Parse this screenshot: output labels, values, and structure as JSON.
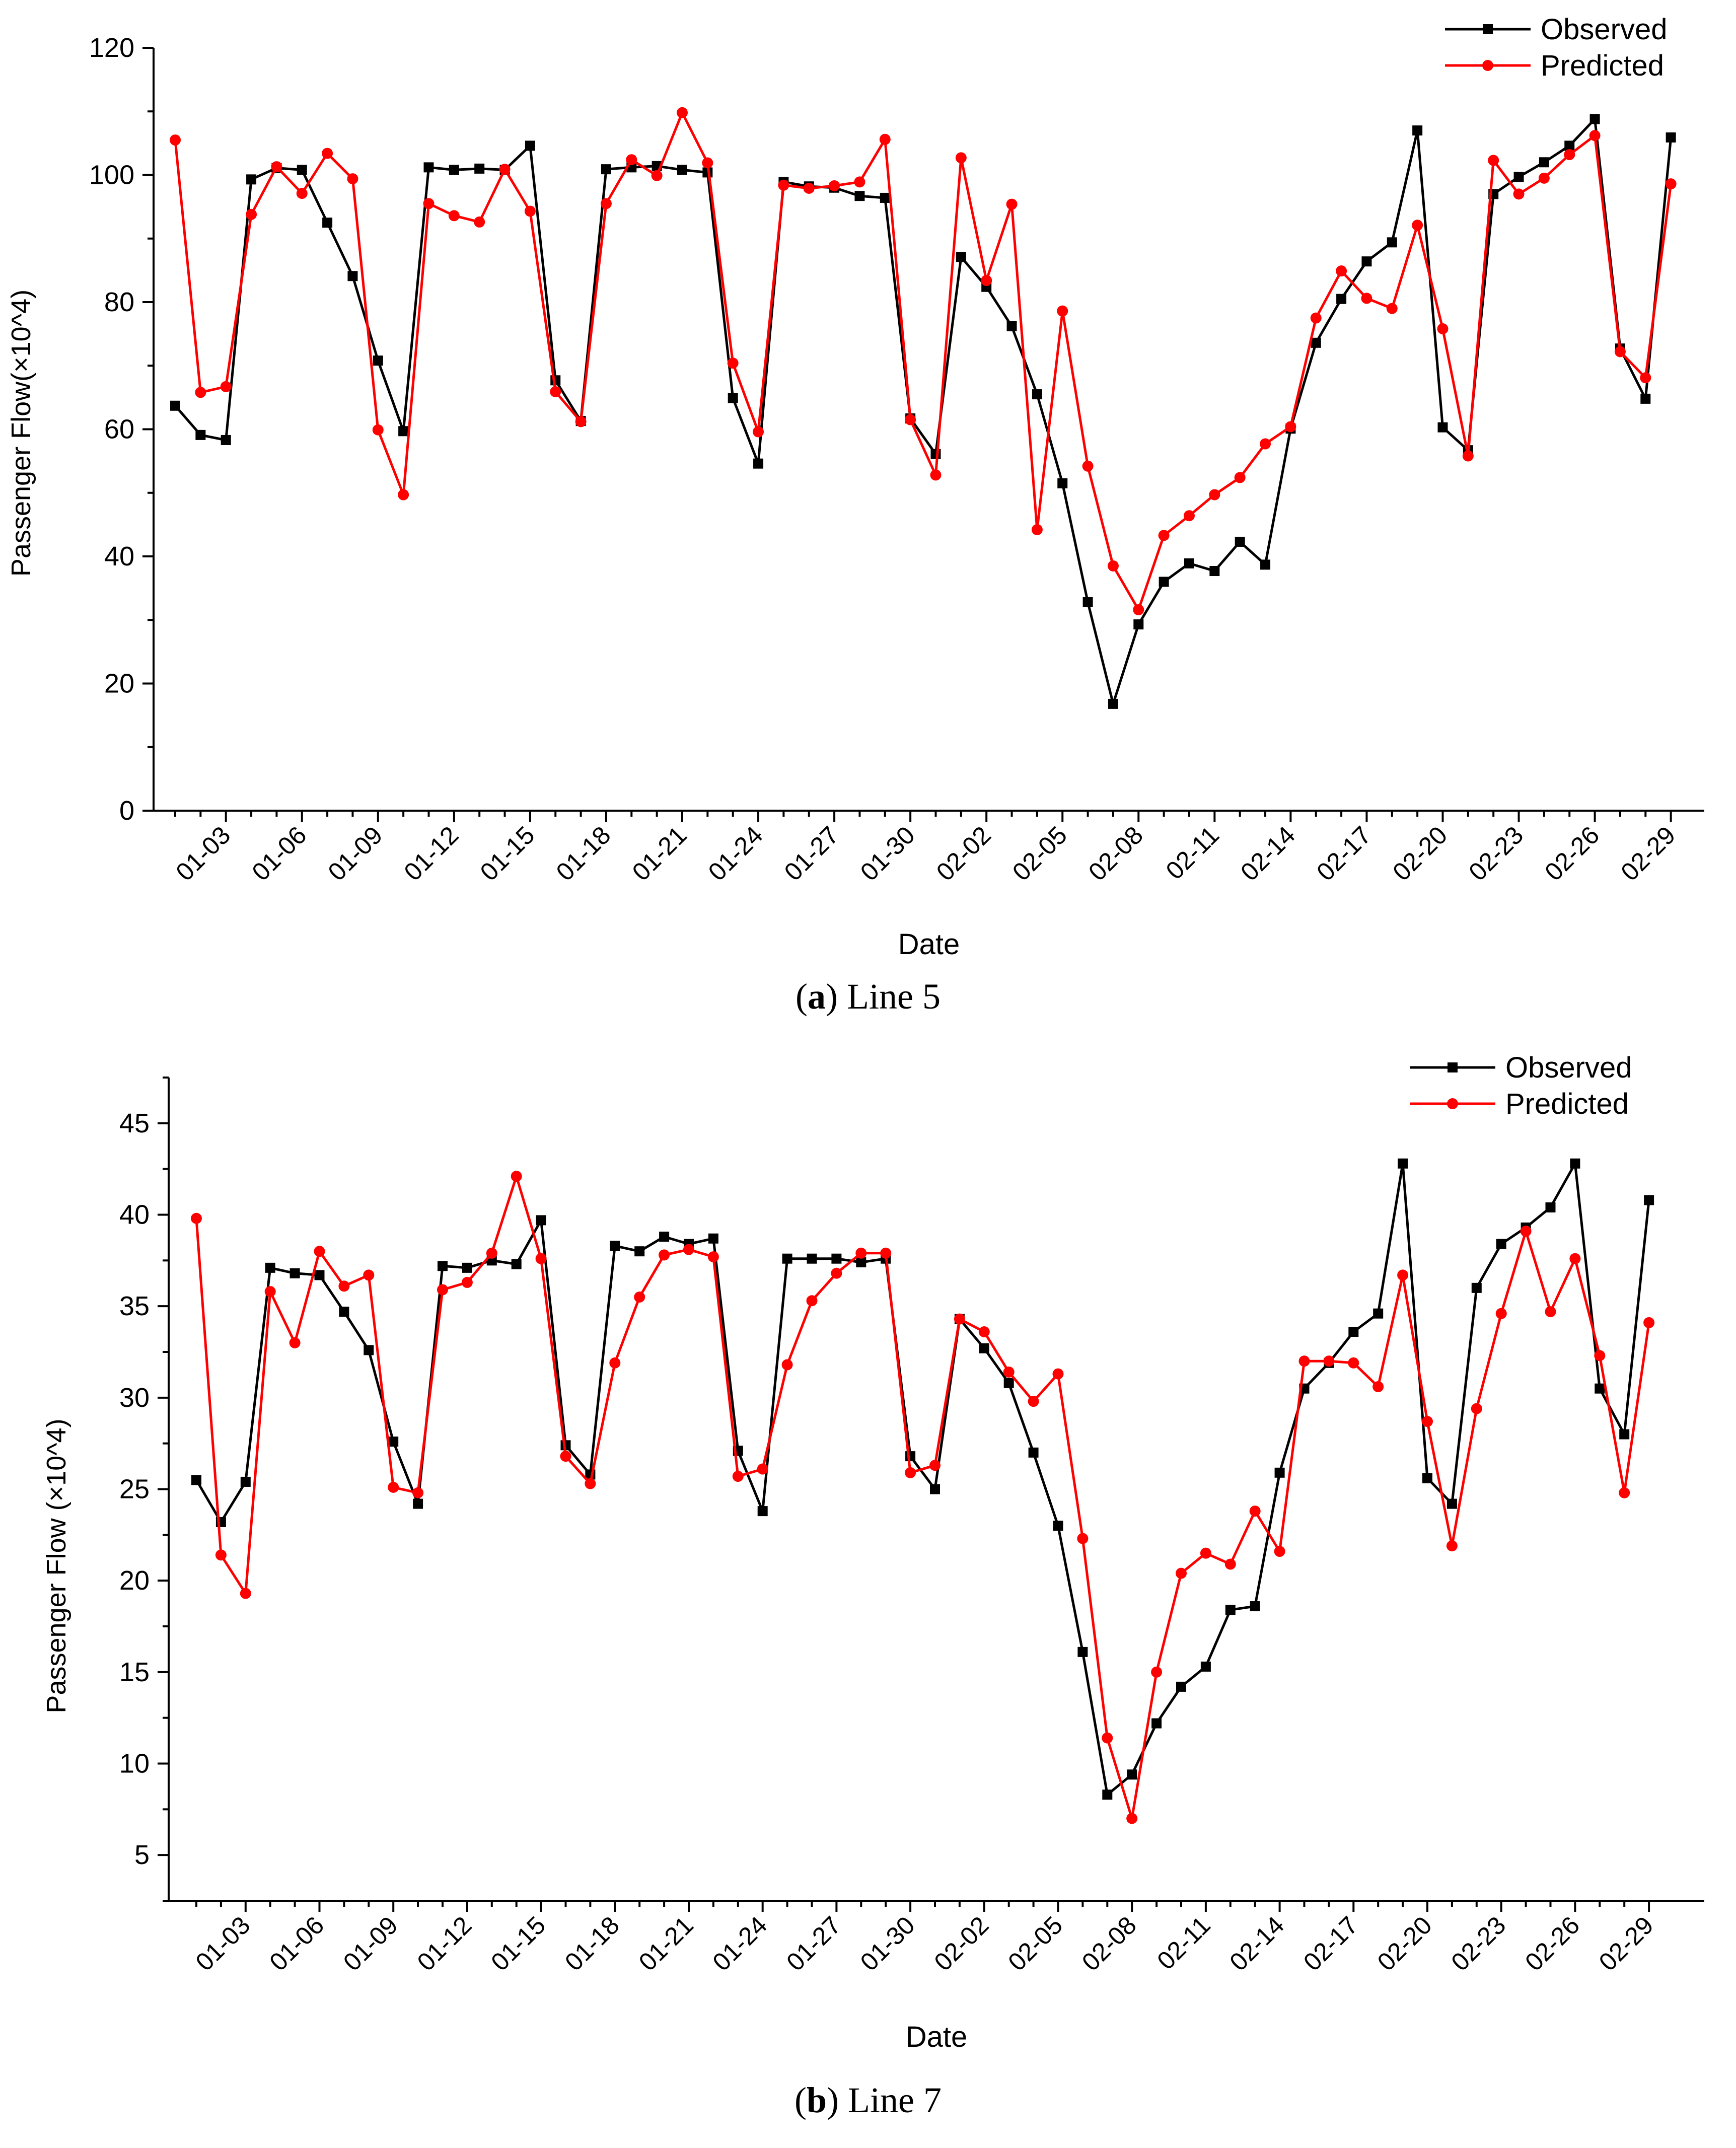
{
  "chart_data": [
    {
      "type": "line",
      "id": "a",
      "caption_letter": "a",
      "caption_text": ") Line 5",
      "xlabel": "Date",
      "ylabel": "Passenger Flow(×10^4)",
      "ylim": [
        0,
        120
      ],
      "yticks": [
        "0",
        "20",
        "40",
        "60",
        "80",
        "100",
        "120"
      ],
      "tick_labels": [
        "01-03",
        "01-06",
        "01-09",
        "01-12",
        "01-15",
        "01-18",
        "01-21",
        "01-24",
        "01-27",
        "01-30",
        "02-02",
        "02-05",
        "02-08",
        "02-11",
        "02-14",
        "02-17",
        "02-20",
        "02-23",
        "02-26",
        "02-29"
      ],
      "legend": {
        "placement": "top-right",
        "entries": [
          "Observed",
          "Predicted"
        ]
      },
      "series": [
        {
          "name": "Observed",
          "color": "#000000",
          "marker": "square",
          "values": [
            63.7,
            59.1,
            58.3,
            99.3,
            101.1,
            100.8,
            92.5,
            84.1,
            70.8,
            59.7,
            101.2,
            100.8,
            101.0,
            100.8,
            104.6,
            67.7,
            61.3,
            100.9,
            101.2,
            101.4,
            100.8,
            100.4,
            64.9,
            54.6,
            98.9,
            98.2,
            98.0,
            96.7,
            96.4,
            61.7,
            56.1,
            87.1,
            82.4,
            76.2,
            65.5,
            51.5,
            32.8,
            16.8,
            29.3,
            36.0,
            38.9,
            37.7,
            42.3,
            38.7,
            60.1,
            73.6,
            80.5,
            86.4,
            89.4,
            107.0,
            60.3,
            56.7,
            97.0,
            99.7,
            102.0,
            104.6,
            108.8,
            72.7,
            64.8,
            105.9
          ]
        },
        {
          "name": "Predicted",
          "color": "#ff0000",
          "marker": "circle",
          "values": [
            105.5,
            65.8,
            66.7,
            93.8,
            101.3,
            97.1,
            103.4,
            99.4,
            59.9,
            49.7,
            95.5,
            93.6,
            92.6,
            100.9,
            94.3,
            65.9,
            61.2,
            95.5,
            102.4,
            99.9,
            109.8,
            101.9,
            70.4,
            59.6,
            98.4,
            97.9,
            98.3,
            98.9,
            105.6,
            61.5,
            52.8,
            102.7,
            83.4,
            95.4,
            44.2,
            78.6,
            54.2,
            38.5,
            31.6,
            43.3,
            46.4,
            49.7,
            52.4,
            57.7,
            60.4,
            77.5,
            84.9,
            80.6,
            79.0,
            92.1,
            75.8,
            55.8,
            102.3,
            97.0,
            99.5,
            103.2,
            106.2,
            72.2,
            68.1,
            98.6
          ]
        }
      ]
    },
    {
      "type": "line",
      "id": "b",
      "caption_letter": "b",
      "caption_text": ") Line 7",
      "xlabel": "Date",
      "ylabel": "Passenger Flow (×10^4)",
      "ylim": [
        2.5,
        47.5
      ],
      "yticks": [
        "5",
        "10",
        "15",
        "20",
        "25",
        "30",
        "35",
        "40",
        "45"
      ],
      "tick_labels": [
        "01-03",
        "01-06",
        "01-09",
        "01-12",
        "01-15",
        "01-18",
        "01-21",
        "01-24",
        "01-27",
        "01-30",
        "02-02",
        "02-05",
        "02-08",
        "02-11",
        "02-14",
        "02-17",
        "02-20",
        "02-23",
        "02-26",
        "02-29"
      ],
      "legend": {
        "placement": "top-right",
        "entries": [
          "Observed",
          "Predicted"
        ]
      },
      "series": [
        {
          "name": "Observed",
          "color": "#000000",
          "marker": "square",
          "values": [
            25.5,
            23.2,
            25.4,
            37.1,
            36.8,
            36.7,
            34.7,
            32.6,
            27.6,
            24.2,
            37.2,
            37.1,
            37.5,
            37.3,
            39.7,
            27.4,
            25.8,
            38.3,
            38.0,
            38.8,
            38.4,
            38.7,
            27.1,
            23.8,
            37.6,
            37.6,
            37.6,
            37.4,
            37.6,
            26.8,
            25.0,
            34.3,
            32.7,
            30.8,
            27.0,
            23.0,
            16.1,
            8.3,
            9.4,
            12.2,
            14.2,
            15.3,
            18.4,
            18.6,
            25.9,
            30.5,
            31.9,
            33.6,
            34.6,
            42.8,
            25.6,
            24.2,
            36.0,
            38.4,
            39.3,
            40.4,
            42.8,
            30.5,
            28.0,
            40.8
          ]
        },
        {
          "name": "Predicted",
          "color": "#ff0000",
          "marker": "circle",
          "values": [
            39.8,
            21.4,
            19.3,
            35.8,
            33.0,
            38.0,
            36.1,
            36.7,
            25.1,
            24.8,
            35.9,
            36.3,
            37.9,
            42.1,
            37.6,
            26.8,
            25.3,
            31.9,
            35.5,
            37.8,
            38.1,
            37.7,
            25.7,
            26.1,
            31.8,
            35.3,
            36.8,
            37.9,
            37.9,
            25.9,
            26.3,
            34.3,
            33.6,
            31.4,
            29.8,
            31.3,
            22.3,
            11.4,
            7.0,
            15.0,
            20.4,
            21.5,
            20.9,
            23.8,
            21.6,
            32.0,
            32.0,
            31.9,
            30.6,
            36.7,
            28.7,
            21.9,
            29.4,
            34.6,
            39.1,
            34.7,
            37.6,
            32.3,
            24.8,
            34.1
          ]
        }
      ]
    }
  ]
}
